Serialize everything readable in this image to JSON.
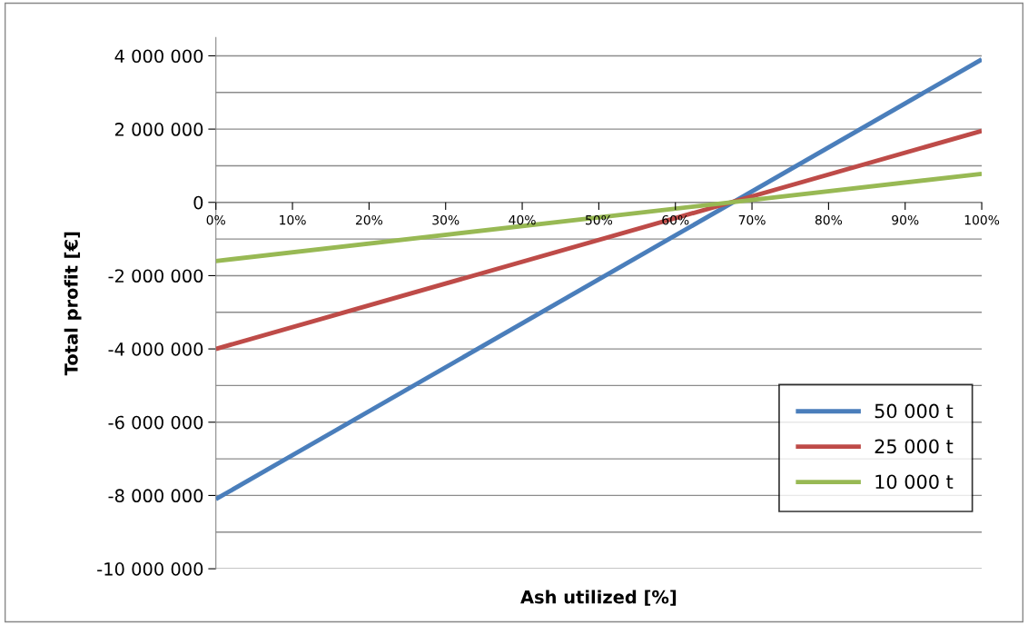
{
  "chart_data": {
    "type": "line",
    "xlabel": "Ash utilized [%]",
    "ylabel": "Total profit [€]",
    "x": [
      0,
      100
    ],
    "series": [
      {
        "name": "50 000 t",
        "color": "#4a7ebb",
        "values": [
          -8100000,
          3900000
        ]
      },
      {
        "name": "25 000 t",
        "color": "#be4b48",
        "values": [
          -4000000,
          1950000
        ]
      },
      {
        "name": "10 000 t",
        "color": "#98b954",
        "values": [
          -1600000,
          780000
        ]
      }
    ],
    "xlim": [
      0,
      100
    ],
    "xticks": [
      {
        "value": 0,
        "label": "0%"
      },
      {
        "value": 10,
        "label": "10%"
      },
      {
        "value": 20,
        "label": "20%"
      },
      {
        "value": 30,
        "label": "30%"
      },
      {
        "value": 40,
        "label": "40%"
      },
      {
        "value": 50,
        "label": "50%"
      },
      {
        "value": 60,
        "label": "60%"
      },
      {
        "value": 70,
        "label": "70%"
      },
      {
        "value": 80,
        "label": "80%"
      },
      {
        "value": 90,
        "label": "90%"
      },
      {
        "value": 100,
        "label": "100%"
      }
    ],
    "ylim": [
      -10000000,
      4500000
    ],
    "yticks": [
      {
        "value": -10000000,
        "label": "-10 000 000"
      },
      {
        "value": -9000000,
        "label": null
      },
      {
        "value": -8000000,
        "label": "-8 000 000"
      },
      {
        "value": -7000000,
        "label": null
      },
      {
        "value": -6000000,
        "label": "-6 000 000"
      },
      {
        "value": -5000000,
        "label": null
      },
      {
        "value": -4000000,
        "label": "-4 000 000"
      },
      {
        "value": -3000000,
        "label": null
      },
      {
        "value": -2000000,
        "label": "-2 000 000"
      },
      {
        "value": -1000000,
        "label": null
      },
      {
        "value": 0,
        "label": "0"
      },
      {
        "value": 1000000,
        "label": null
      },
      {
        "value": 2000000,
        "label": "2 000 000"
      },
      {
        "value": 3000000,
        "label": null
      },
      {
        "value": 4000000,
        "label": "4 000 000"
      }
    ],
    "grid": "y",
    "legend": "bottom right",
    "marker": "none",
    "line_style": "solid"
  }
}
